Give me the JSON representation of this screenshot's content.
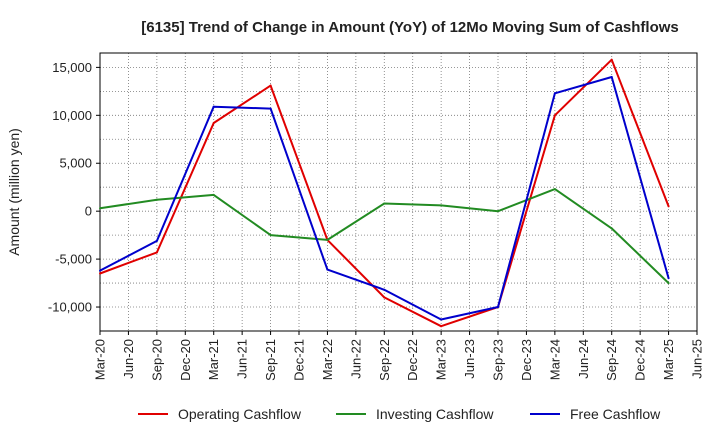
{
  "chart_data": {
    "type": "line",
    "title": "[6135]  Trend of Change in Amount (YoY) of 12Mo Moving Sum of Cashflows",
    "xlabel": "",
    "ylabel": "Amount (million yen)",
    "ylim": [
      -12500,
      16500
    ],
    "yticks": [
      15000,
      10000,
      5000,
      0,
      -5000,
      -10000
    ],
    "ytick_labels": [
      "15,000",
      "10,000",
      "5,000",
      "0",
      "-5,000",
      "-10,000"
    ],
    "x_tick_labels": [
      "Mar-20",
      "Jun-20",
      "Sep-20",
      "Dec-20",
      "Mar-21",
      "Jun-21",
      "Sep-21",
      "Dec-21",
      "Mar-22",
      "Jun-22",
      "Sep-22",
      "Dec-22",
      "Mar-23",
      "Jun-23",
      "Sep-23",
      "Dec-23",
      "Mar-24",
      "Jun-24",
      "Sep-24",
      "Dec-24",
      "Mar-25",
      "Jun-25"
    ],
    "x": [
      "Mar-20",
      "Sep-20",
      "Mar-21",
      "Sep-21",
      "Mar-22",
      "Sep-22",
      "Mar-23",
      "Sep-23",
      "Mar-24",
      "Sep-24",
      "Mar-25"
    ],
    "grid": true,
    "legend_position": "bottom",
    "series": [
      {
        "name": "Operating Cashflow",
        "color": "#e00000",
        "values": [
          -6500,
          -4300,
          9200,
          13100,
          -3000,
          -9000,
          -12000,
          -10000,
          10000,
          15800,
          500
        ]
      },
      {
        "name": "Investing Cashflow",
        "color": "#228b22",
        "values": [
          300,
          1200,
          1700,
          -2500,
          -3000,
          800,
          600,
          0,
          2300,
          -1800,
          -7500
        ]
      },
      {
        "name": "Free Cashflow",
        "color": "#0000cc",
        "values": [
          -6200,
          -3100,
          10900,
          10700,
          -6100,
          -8200,
          -11300,
          -10000,
          12300,
          14000,
          -7000
        ]
      }
    ]
  }
}
